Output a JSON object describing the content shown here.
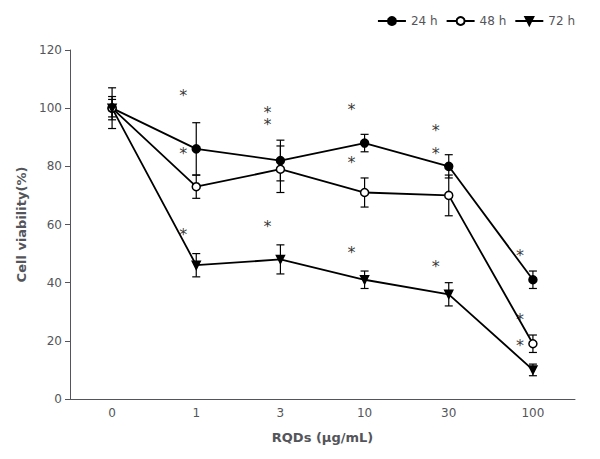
{
  "chart_data": {
    "type": "line",
    "xlabel": "RQDs (μg/mL)",
    "ylabel": "Cell viability(%)",
    "categories": [
      "0",
      "1",
      "3",
      "10",
      "30",
      "100"
    ],
    "series": [
      {
        "name": "24 h",
        "color": "black",
        "marker": "circle",
        "values": [
          100,
          86,
          82,
          88,
          80,
          41
        ],
        "errors": [
          7,
          9,
          7,
          3,
          4,
          3
        ]
      },
      {
        "name": "48 h",
        "color": "black",
        "marker": "open_circle",
        "values": [
          100,
          73,
          79,
          71,
          70,
          19
        ],
        "errors": [
          4,
          4,
          8,
          5,
          7,
          3
        ]
      },
      {
        "name": "72 h",
        "color": "black",
        "marker": "triangle_down",
        "values": [
          100,
          46,
          48,
          41,
          36,
          10
        ],
        "errors": [
          3,
          4,
          5,
          3,
          4,
          2
        ]
      }
    ],
    "annotations": [
      {
        "text": "*",
        "x": "1",
        "y": 102
      },
      {
        "text": "*",
        "x": "3",
        "y": 96
      },
      {
        "text": "*",
        "x": "10",
        "y": 97
      },
      {
        "text": "*",
        "x": "30",
        "y": 90
      },
      {
        "text": "*",
        "x": "100",
        "y": 47
      },
      {
        "text": "*",
        "x": "1",
        "y": 82
      },
      {
        "text": "*",
        "x": "3",
        "y": 92
      },
      {
        "text": "*",
        "x": "10",
        "y": 79
      },
      {
        "text": "*",
        "x": "30",
        "y": 82
      },
      {
        "text": "*",
        "x": "100",
        "y": 25
      },
      {
        "text": "*",
        "x": "1",
        "y": 54
      },
      {
        "text": "*",
        "x": "3",
        "y": 57
      },
      {
        "text": "*",
        "x": "10",
        "y": 48
      },
      {
        "text": "*",
        "x": "30",
        "y": 43
      },
      {
        "text": "*",
        "x": "100",
        "y": 16
      }
    ],
    "ylim": [
      0,
      120
    ],
    "yticks": [
      0,
      20,
      40,
      60,
      80,
      100,
      120
    ],
    "grid": false,
    "legend": "upper right"
  }
}
